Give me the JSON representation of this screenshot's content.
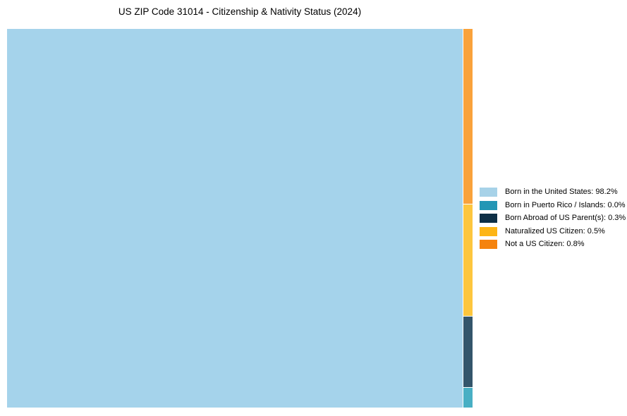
{
  "title": "US ZIP Code 31014 - Citizenship & Nativity Status (2024)",
  "chart_data": {
    "type": "treemap",
    "title": "US ZIP Code 31014 - Citizenship & Nativity Status (2024)",
    "categories": [
      "Born in the United States",
      "Born in Puerto Rico / Islands",
      "Born Abroad of US Parent(s)",
      "Naturalized US Citizen",
      "Not a US Citizen"
    ],
    "values": [
      98.2,
      0.0,
      0.3,
      0.5,
      0.8
    ],
    "unit": "%",
    "legend_position": "right",
    "layout": "one large tile for dominant category, remaining categories stacked in a narrow right column (top to bottom: Not a US Citizen, Naturalized US Citizen, Born Abroad of US Parent(s), Born in Puerto Rico / Islands)"
  },
  "treemap": {
    "main": {
      "name": "Born in the United States",
      "value_pct": 98.2,
      "fill": "#A5D3EB"
    },
    "segments": [
      {
        "name": "Not a US Citizen",
        "value_pct": 0.8,
        "fill": "#F9A23B"
      },
      {
        "name": "Naturalized US Citizen",
        "value_pct": 0.5,
        "fill": "#FDC63E"
      },
      {
        "name": "Born Abroad of US Parent(s)",
        "value_pct": 0.3,
        "fill": "#33556B"
      },
      {
        "name": "Born in Puerto Rico / Islands",
        "value_pct": 0.0,
        "fill": "#48AFC4"
      }
    ]
  },
  "legend": {
    "items": [
      {
        "label": "Born in the United States: 98.2%",
        "color": "#A7D2E8"
      },
      {
        "label": "Born in Puerto Rico / Islands: 0.0%",
        "color": "#2396B5"
      },
      {
        "label": "Born Abroad of US Parent(s): 0.3%",
        "color": "#0D2F46"
      },
      {
        "label": "Naturalized US Citizen: 0.5%",
        "color": "#FDB515"
      },
      {
        "label": "Not a US Citizen: 0.8%",
        "color": "#F5830E"
      }
    ]
  }
}
